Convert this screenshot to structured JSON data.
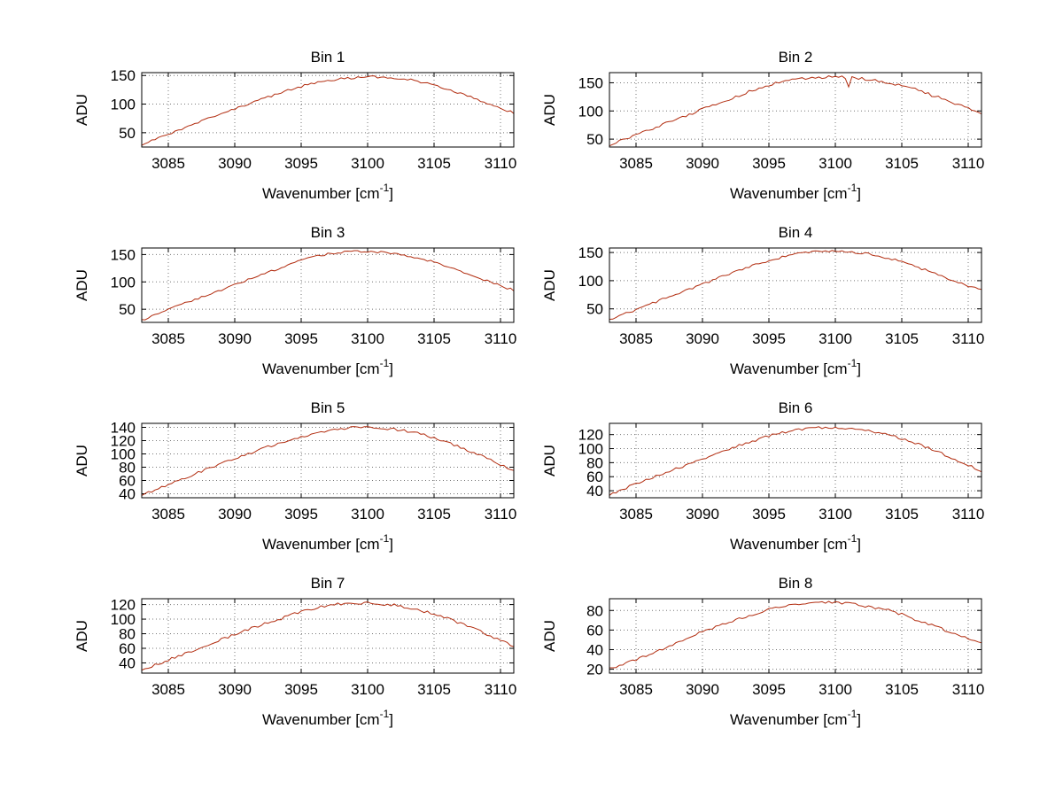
{
  "style": {
    "background": "#ffffff",
    "line_color": "#b22d10",
    "grid_color": "#777777",
    "axis_color": "#000000",
    "text_color": "#000000"
  },
  "chart_data": {
    "type": "line",
    "layout": "4x2 grid of spectra subplots",
    "xlabel_base": "Wavenumber [cm",
    "xlabel_sup": "-1",
    "xlabel_close": "]",
    "ylabel": "ADU",
    "xlim": [
      3083,
      3111
    ],
    "xticks": [
      3085,
      3090,
      3095,
      3100,
      3105,
      3110
    ],
    "grid": "dotted",
    "subplots": [
      {
        "title": "Bin 1",
        "x_start": 3083,
        "x_step": 1,
        "values": [
          28,
          38,
          48,
          57,
          66,
          75,
          84,
          92,
          100,
          108,
          116,
          124,
          131,
          137,
          141,
          144,
          146,
          148,
          147,
          146,
          143,
          139,
          133,
          126,
          118,
          110,
          102,
          93,
          85
        ],
        "yticks": [
          50,
          100,
          150
        ],
        "ylim": [
          25,
          155
        ],
        "noise": 2.0
      },
      {
        "title": "Bin 2",
        "x_start": 3083,
        "x_step": 1,
        "values": [
          40,
          49,
          58,
          67,
          76,
          85,
          94,
          103,
          112,
          121,
          130,
          138,
          146,
          152,
          156,
          158,
          160,
          160,
          159,
          157,
          154,
          150,
          145,
          138,
          130,
          122,
          113,
          104,
          95
        ],
        "yticks": [
          50,
          100,
          150
        ],
        "ylim": [
          36,
          168
        ],
        "noise": 2.5,
        "dip": {
          "x": 3100.9,
          "depth": 14
        }
      },
      {
        "title": "Bin 3",
        "x_start": 3083,
        "x_step": 1,
        "values": [
          30,
          40,
          50,
          59,
          68,
          77,
          86,
          95,
          104,
          113,
          122,
          131,
          139,
          146,
          151,
          154,
          156,
          155,
          154,
          152,
          148,
          143,
          136,
          128,
          120,
          111,
          102,
          93,
          85
        ],
        "yticks": [
          50,
          100,
          150
        ],
        "ylim": [
          26,
          162
        ],
        "noise": 2.0
      },
      {
        "title": "Bin 4",
        "x_start": 3083,
        "x_step": 1,
        "values": [
          30,
          40,
          49,
          58,
          67,
          76,
          85,
          94,
          103,
          112,
          120,
          128,
          136,
          142,
          147,
          150,
          152,
          152,
          151,
          149,
          145,
          140,
          133,
          125,
          117,
          108,
          99,
          91,
          83
        ],
        "yticks": [
          50,
          100,
          150
        ],
        "ylim": [
          26,
          158
        ],
        "noise": 2.0
      },
      {
        "title": "Bin 5",
        "x_start": 3083,
        "x_step": 1,
        "values": [
          38,
          46,
          54,
          62,
          70,
          78,
          86,
          93,
          100,
          107,
          114,
          120,
          126,
          131,
          135,
          138,
          140,
          140,
          139,
          137,
          134,
          130,
          124,
          117,
          110,
          102,
          93,
          84,
          74
        ],
        "yticks": [
          40,
          60,
          80,
          100,
          120,
          140
        ],
        "ylim": [
          34,
          146
        ],
        "noise": 1.8
      },
      {
        "title": "Bin 6",
        "x_start": 3083,
        "x_step": 1,
        "values": [
          34,
          42,
          50,
          57,
          64,
          71,
          78,
          85,
          92,
          99,
          106,
          112,
          118,
          123,
          127,
          129,
          130,
          130,
          129,
          127,
          124,
          120,
          114,
          108,
          101,
          93,
          85,
          77,
          68
        ],
        "yticks": [
          40,
          60,
          80,
          100,
          120
        ],
        "ylim": [
          30,
          136
        ],
        "noise": 1.8
      },
      {
        "title": "Bin 7",
        "x_start": 3083,
        "x_step": 1,
        "values": [
          30,
          37,
          44,
          51,
          58,
          65,
          72,
          79,
          86,
          92,
          98,
          104,
          110,
          115,
          119,
          121,
          122,
          122,
          121,
          119,
          116,
          112,
          107,
          101,
          94,
          87,
          79,
          71,
          63
        ],
        "yticks": [
          40,
          60,
          80,
          100,
          120
        ],
        "ylim": [
          26,
          128
        ],
        "noise": 1.8
      },
      {
        "title": "Bin 8",
        "x_start": 3083,
        "x_step": 1,
        "values": [
          20,
          25,
          30,
          35,
          41,
          47,
          53,
          58,
          63,
          68,
          73,
          77,
          81,
          84,
          86,
          88,
          88,
          88,
          87,
          85,
          83,
          80,
          76,
          71,
          66,
          61,
          56,
          51,
          46
        ],
        "yticks": [
          20,
          40,
          60,
          80
        ],
        "ylim": [
          16,
          92
        ],
        "noise": 1.4
      }
    ]
  }
}
